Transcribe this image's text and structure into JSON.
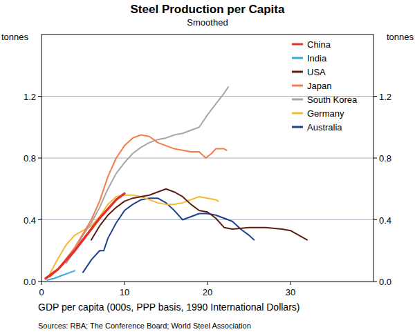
{
  "chart_data": {
    "type": "line",
    "title": "Steel Production per Capita",
    "subtitle": "Smoothed",
    "y_label": "tonnes",
    "y2_label": "tonnes",
    "x_label": "GDP per capita (000s, PPP basis, 1990 International Dollars)",
    "source": "Sources: RBA; The Conference Board; World Steel Association",
    "xlim": [
      0,
      40
    ],
    "xticks": [
      0,
      10,
      20,
      30
    ],
    "ylim": [
      0,
      1.6
    ],
    "yticks": [
      {
        "value": 0,
        "label": "0.0"
      },
      0.4,
      0.8,
      1.2
    ],
    "y2lim": [
      0,
      1.6
    ],
    "y2ticks": [
      {
        "value": 0,
        "label": "0.0"
      },
      0.4,
      0.8,
      1.2
    ],
    "grid": true,
    "legend": "upper right",
    "series": [
      {
        "name": "China",
        "color": "#e8302a",
        "x": [
          0.5,
          1,
          2,
          3,
          4,
          5,
          6,
          7,
          8,
          9,
          10
        ],
        "values": [
          0.02,
          0.04,
          0.08,
          0.14,
          0.2,
          0.27,
          0.34,
          0.41,
          0.47,
          0.53,
          0.57
        ]
      },
      {
        "name": "India",
        "color": "#3aa8e0",
        "x": [
          0.7,
          1.5,
          2.5,
          3.5,
          4
        ],
        "values": [
          0.01,
          0.02,
          0.04,
          0.06,
          0.07
        ]
      },
      {
        "name": "USA",
        "color": "#5a1e14",
        "x": [
          6,
          7,
          8,
          9,
          10,
          11,
          12,
          13,
          14,
          15,
          16,
          17,
          18,
          19,
          20,
          21,
          22,
          23,
          25,
          27,
          29,
          30,
          31,
          32
        ],
        "values": [
          0.27,
          0.36,
          0.43,
          0.48,
          0.52,
          0.54,
          0.55,
          0.56,
          0.58,
          0.6,
          0.58,
          0.55,
          0.5,
          0.46,
          0.45,
          0.41,
          0.35,
          0.34,
          0.35,
          0.35,
          0.34,
          0.33,
          0.3,
          0.27
        ]
      },
      {
        "name": "Japan",
        "color": "#f47b4a",
        "x": [
          1,
          2,
          3,
          4,
          5,
          6,
          7,
          8,
          9,
          10,
          11,
          12,
          13,
          14,
          15,
          16,
          17,
          18,
          19,
          19.8,
          20.5,
          21,
          22,
          22.3
        ],
        "values": [
          0.03,
          0.08,
          0.15,
          0.22,
          0.31,
          0.4,
          0.52,
          0.68,
          0.8,
          0.88,
          0.93,
          0.95,
          0.94,
          0.9,
          0.88,
          0.86,
          0.85,
          0.84,
          0.84,
          0.8,
          0.83,
          0.86,
          0.86,
          0.85
        ]
      },
      {
        "name": "South Korea",
        "color": "#a6a6a6",
        "x": [
          3,
          4,
          5,
          6,
          7,
          8,
          9,
          10,
          11,
          12,
          13,
          14,
          15,
          16,
          17,
          18,
          19,
          20,
          21,
          22,
          22.5
        ],
        "values": [
          0.12,
          0.2,
          0.3,
          0.38,
          0.48,
          0.6,
          0.7,
          0.77,
          0.83,
          0.87,
          0.9,
          0.92,
          0.93,
          0.95,
          0.96,
          0.98,
          1.0,
          1.08,
          1.15,
          1.22,
          1.26
        ]
      },
      {
        "name": "Germany",
        "color": "#f7b731",
        "x": [
          1,
          2,
          3,
          4,
          5,
          6,
          7,
          8,
          9,
          10,
          11,
          12,
          13,
          14,
          15,
          16,
          17,
          18,
          19,
          20,
          21,
          21.3
        ],
        "values": [
          0.05,
          0.15,
          0.24,
          0.3,
          0.33,
          0.36,
          0.42,
          0.5,
          0.55,
          0.56,
          0.56,
          0.55,
          0.53,
          0.51,
          0.5,
          0.5,
          0.51,
          0.53,
          0.55,
          0.54,
          0.53,
          0.52
        ]
      },
      {
        "name": "Australia",
        "color": "#1f3f8f",
        "x": [
          5,
          5.5,
          6,
          7,
          7.5,
          8,
          9,
          10,
          11,
          12,
          13,
          14,
          15,
          16,
          17,
          18,
          19,
          20,
          21,
          22,
          23,
          24,
          25,
          25.6
        ],
        "values": [
          0.06,
          0.1,
          0.14,
          0.2,
          0.2,
          0.28,
          0.38,
          0.46,
          0.5,
          0.53,
          0.54,
          0.54,
          0.51,
          0.46,
          0.4,
          0.42,
          0.44,
          0.44,
          0.43,
          0.41,
          0.39,
          0.34,
          0.3,
          0.27
        ]
      }
    ]
  }
}
